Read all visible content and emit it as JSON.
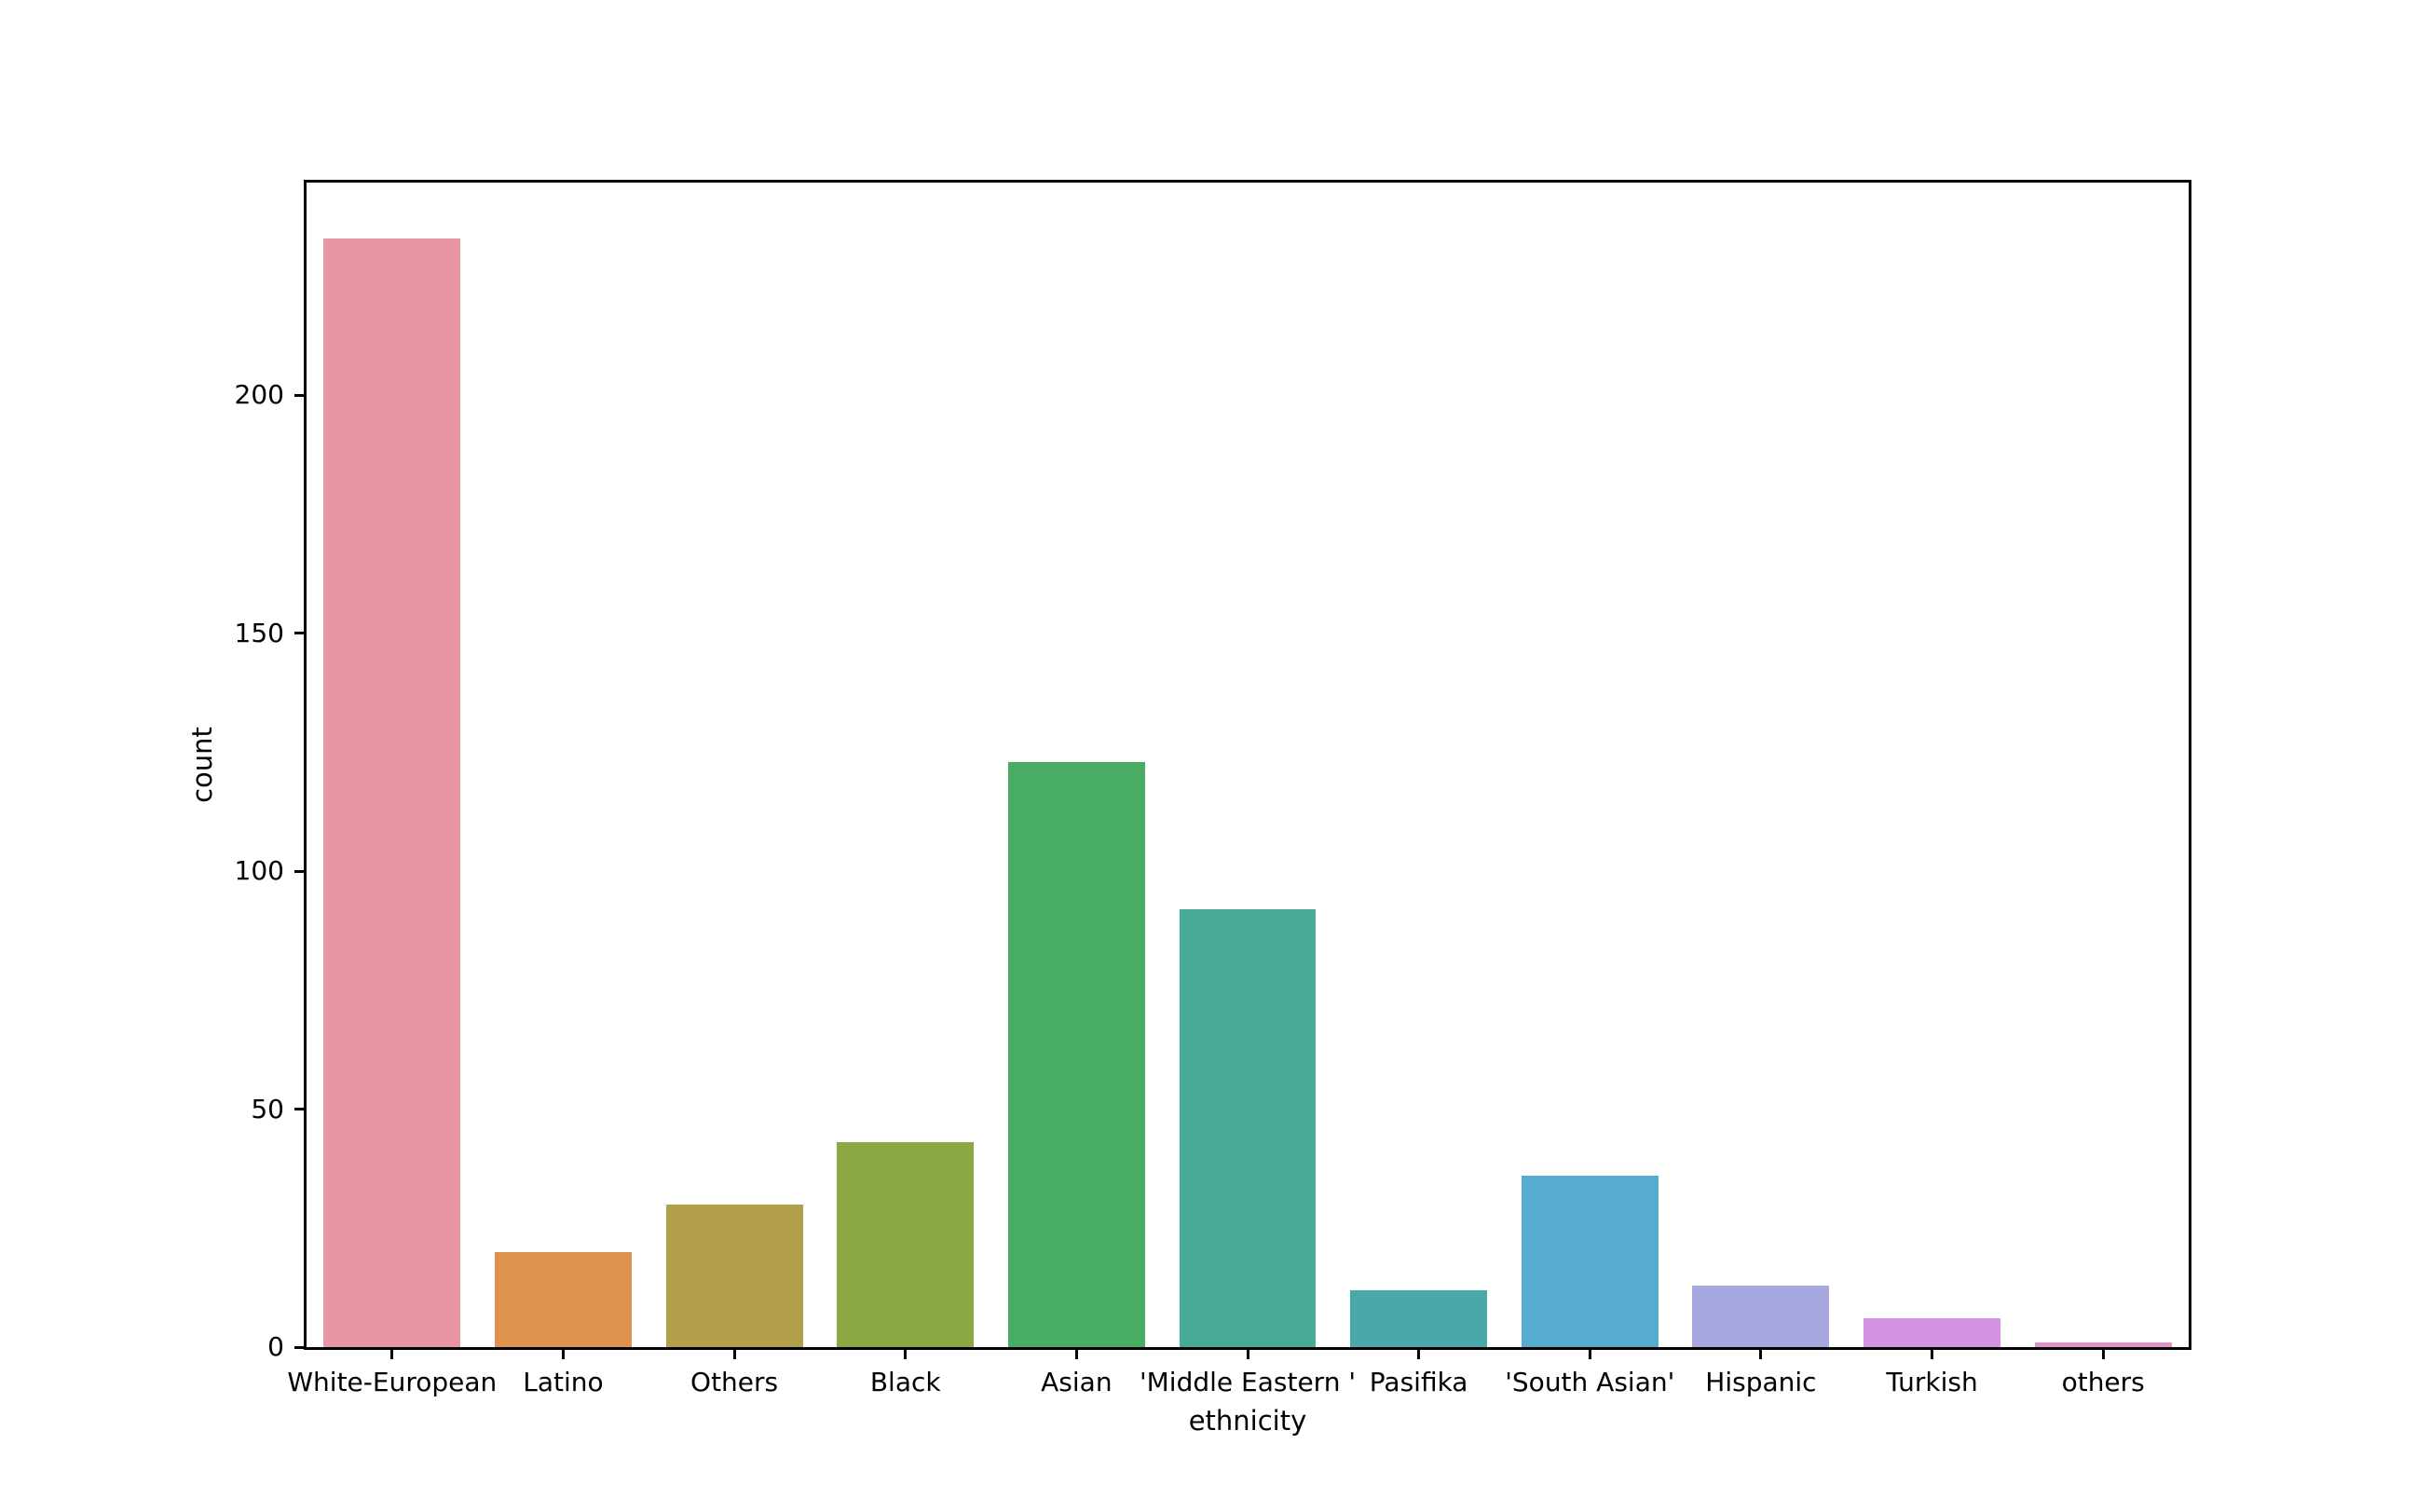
{
  "figure": {
    "background": "#ffffff",
    "axis_color": "#000000"
  },
  "chart_data": {
    "type": "bar",
    "title": "",
    "xlabel": "ethnicity",
    "ylabel": "count",
    "categories": [
      "White-European",
      "Latino",
      "Others",
      "Black",
      "Asian",
      "'Middle Eastern '",
      "Pasifika",
      "'South Asian'",
      "Hispanic",
      "Turkish",
      "others"
    ],
    "values": [
      233,
      20,
      30,
      43,
      123,
      92,
      12,
      36,
      13,
      6,
      1
    ],
    "colors": [
      "#ea95a3",
      "#dd924d",
      "#b3a04a",
      "#8ba845",
      "#48ad63",
      "#48ab98",
      "#4aa8ab",
      "#55accf",
      "#a8a8e0",
      "#d494e2",
      "#e191c8"
    ],
    "yticks": [
      0,
      50,
      100,
      150,
      200
    ],
    "ylim": [
      0,
      244.65
    ],
    "bar_width_ratio": 0.8,
    "grid": false,
    "legend": "none"
  }
}
